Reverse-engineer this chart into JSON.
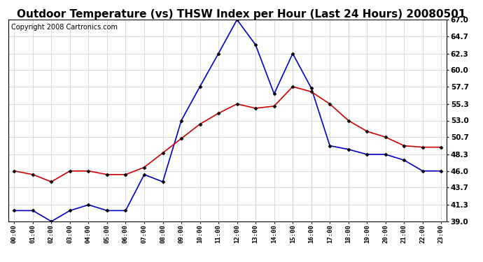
{
  "title": "Outdoor Temperature (vs) THSW Index per Hour (Last 24 Hours) 20080501",
  "copyright": "Copyright 2008 Cartronics.com",
  "hours": [
    "00:00",
    "01:00",
    "02:00",
    "03:00",
    "04:00",
    "05:00",
    "06:00",
    "07:00",
    "08:00",
    "09:00",
    "10:00",
    "11:00",
    "12:00",
    "13:00",
    "14:00",
    "15:00",
    "16:00",
    "17:00",
    "18:00",
    "19:00",
    "20:00",
    "21:00",
    "22:00",
    "23:00"
  ],
  "temp_red": [
    46.0,
    45.5,
    44.5,
    46.0,
    46.0,
    45.5,
    45.5,
    46.5,
    48.5,
    50.5,
    52.5,
    54.0,
    55.3,
    54.7,
    55.0,
    57.7,
    57.0,
    55.3,
    53.0,
    51.5,
    50.7,
    49.5,
    49.3,
    49.3
  ],
  "thsw_blue": [
    40.5,
    40.5,
    39.0,
    40.5,
    41.3,
    40.5,
    40.5,
    45.5,
    44.5,
    53.0,
    57.7,
    62.3,
    67.0,
    63.5,
    56.7,
    62.3,
    57.5,
    49.5,
    49.0,
    48.3,
    48.3,
    47.5,
    46.0,
    46.0
  ],
  "ylim_min": 39.0,
  "ylim_max": 67.0,
  "yticks": [
    39.0,
    41.3,
    43.7,
    46.0,
    48.3,
    50.7,
    53.0,
    55.3,
    57.7,
    60.0,
    62.3,
    64.7,
    67.0
  ],
  "red_color": "#cc0000",
  "blue_color": "#0000cc",
  "background_color": "#ffffff",
  "grid_color": "#cccccc",
  "title_fontsize": 11,
  "copyright_fontsize": 7
}
